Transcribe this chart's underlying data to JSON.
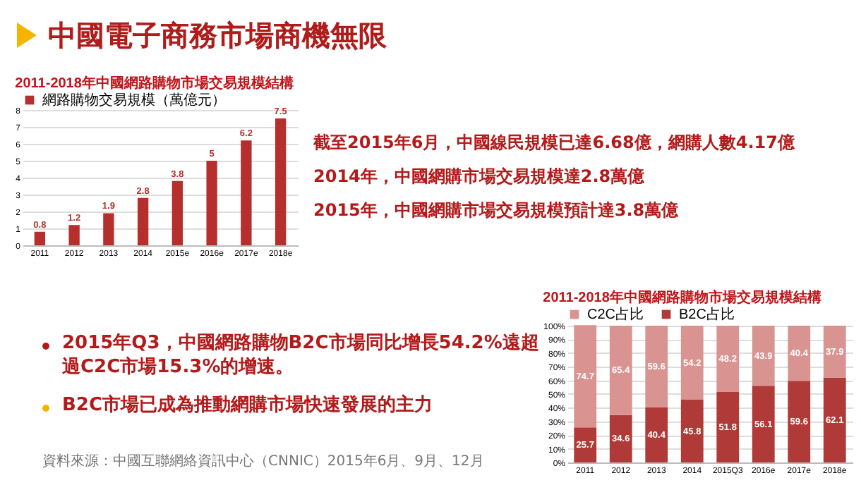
{
  "chart_data": [
    {
      "type": "other",
      "title": "中國電子商務市場商機無限",
      "annotations": [
        "截至2015年6月，中國線民規模已達6.68億，網購人數4.17億",
        "2014年，中國網購市場交易規模達2.8萬億",
        "2015年，中國網購市場交易規模預計達3.8萬億",
        "2015年Q3，中國網路購物B2C市場同比增長54.2%遠超過C2C市場15.3%的增速。",
        "B2C市場已成為推動網購市場快速發展的主力",
        "資料來源：中國互聯網絡資訊中心（CNNIC）2015年6月、9月、12月"
      ]
    },
    {
      "type": "bar",
      "title": "2011-2018年中國網路購物市場交易規模結構",
      "categories": [
        "2011",
        "2012",
        "2013",
        "2014",
        "2015e",
        "2016e",
        "2017e",
        "2018e"
      ],
      "series": [
        {
          "name": "網路購物交易規模（萬億元）",
          "color": "#b5302c",
          "values": [
            0.8,
            1.2,
            1.9,
            2.8,
            3.8,
            5,
            6.2,
            7.5
          ]
        }
      ],
      "ylim": [
        0,
        8
      ],
      "yticks": [
        0,
        1,
        2,
        3,
        4,
        5,
        6,
        7,
        8
      ],
      "grid": "y",
      "legend": "top",
      "data_labels": true
    },
    {
      "type": "bar",
      "title": "2011-2018年中國網路購物市場交易規模結構",
      "stacked": true,
      "categories": [
        "2011",
        "2012",
        "2013",
        "2014",
        "2015Q3",
        "2016e",
        "2017e",
        "2018e"
      ],
      "series": [
        {
          "name": "B2C占比",
          "color": "#b03a37",
          "values": [
            25.7,
            34.6,
            40.4,
            45.8,
            51.8,
            56.1,
            59.6,
            62.1
          ]
        },
        {
          "name": "C2C占比",
          "color": "#d99492",
          "values": [
            74.7,
            65.4,
            59.6,
            54.2,
            48.2,
            43.9,
            40.4,
            37.9
          ]
        }
      ],
      "ylim": [
        0,
        101
      ],
      "yticks": [
        {
          "value": 0,
          "label": "0%"
        },
        {
          "value": 10,
          "label": "10%"
        },
        {
          "value": 20,
          "label": "20%"
        },
        {
          "value": 30,
          "label": "30%"
        },
        {
          "value": 40,
          "label": "40%"
        },
        {
          "value": 50,
          "label": "50%"
        },
        {
          "value": 60,
          "label": "60%"
        },
        {
          "value": 70,
          "label": "70%"
        },
        {
          "value": 80,
          "label": "80%"
        },
        {
          "value": 90,
          "label": "90%"
        },
        {
          "value": 100,
          "label": "100%"
        }
      ],
      "grid": "y",
      "legend": "top",
      "data_labels": true
    }
  ]
}
